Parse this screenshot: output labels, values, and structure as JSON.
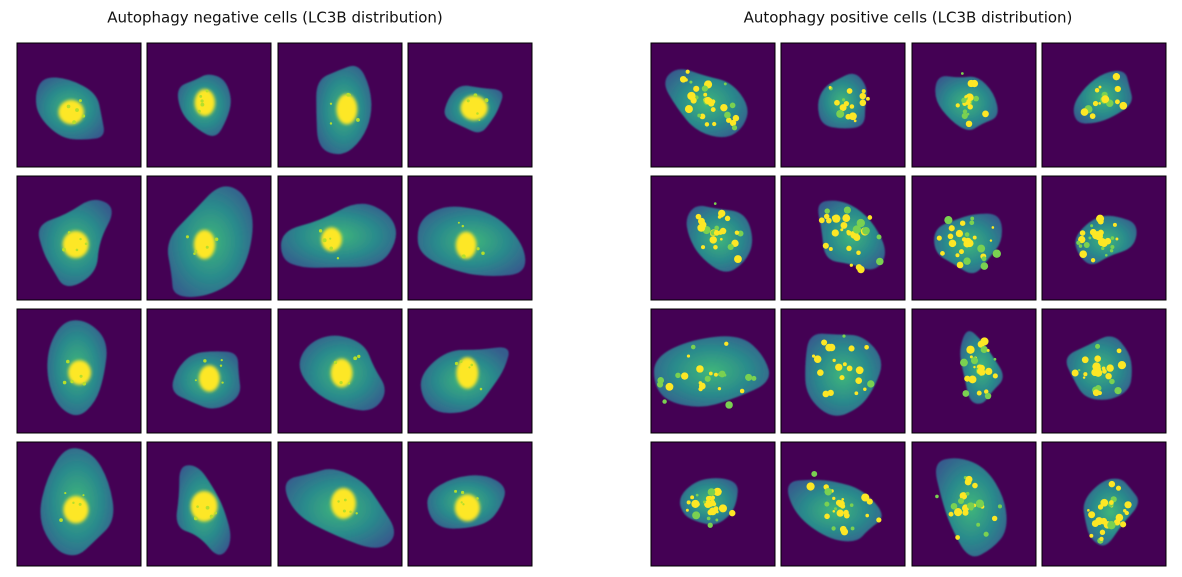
{
  "panels": [
    {
      "title": "Autophagy negative cells (LC3B distribution)"
    },
    {
      "title": "Autophagy positive cells (LC3B distribution)"
    }
  ]
}
